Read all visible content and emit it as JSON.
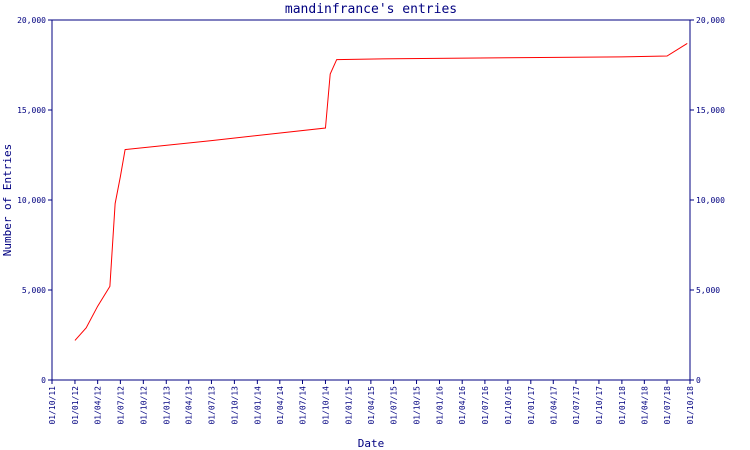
{
  "chart_data": {
    "type": "line",
    "title": "mandinfrance's entries",
    "x_label": "Date",
    "y_label": "Number of Entries",
    "series": [
      {
        "name": "entries",
        "color": "#ff0000",
        "x": [
          "2012-01-01",
          "2012-02-15",
          "2012-04-01",
          "2012-05-20",
          "2012-06-10",
          "2012-07-01",
          "2012-07-20",
          "2013-07-01",
          "2014-10-01",
          "2014-10-20",
          "2014-11-15",
          "2015-07-01",
          "2016-10-01",
          "2018-01-01",
          "2018-07-01",
          "2018-09-20"
        ],
        "values": [
          2200,
          2900,
          4100,
          5200,
          9800,
          11300,
          12800,
          13300,
          14000,
          17000,
          17800,
          17850,
          17900,
          17950,
          18000,
          18700
        ]
      }
    ],
    "xlim": [
      "2011-10-01",
      "2018-10-01"
    ],
    "xticks": [
      {
        "value": "2011-10-01",
        "label": "01/10/11"
      },
      {
        "value": "2012-01-01",
        "label": "01/01/12"
      },
      {
        "value": "2012-04-01",
        "label": "01/04/12"
      },
      {
        "value": "2012-07-01",
        "label": "01/07/12"
      },
      {
        "value": "2012-10-01",
        "label": "01/10/12"
      },
      {
        "value": "2013-01-01",
        "label": "01/01/13"
      },
      {
        "value": "2013-04-01",
        "label": "01/04/13"
      },
      {
        "value": "2013-07-01",
        "label": "01/07/13"
      },
      {
        "value": "2013-10-01",
        "label": "01/10/13"
      },
      {
        "value": "2014-01-01",
        "label": "01/01/14"
      },
      {
        "value": "2014-04-01",
        "label": "01/04/14"
      },
      {
        "value": "2014-07-01",
        "label": "01/07/14"
      },
      {
        "value": "2014-10-01",
        "label": "01/10/14"
      },
      {
        "value": "2015-01-01",
        "label": "01/01/15"
      },
      {
        "value": "2015-04-01",
        "label": "01/04/15"
      },
      {
        "value": "2015-07-01",
        "label": "01/07/15"
      },
      {
        "value": "2015-10-01",
        "label": "01/10/15"
      },
      {
        "value": "2016-01-01",
        "label": "01/01/16"
      },
      {
        "value": "2016-04-01",
        "label": "01/04/16"
      },
      {
        "value": "2016-07-01",
        "label": "01/07/16"
      },
      {
        "value": "2016-10-01",
        "label": "01/10/16"
      },
      {
        "value": "2017-01-01",
        "label": "01/01/17"
      },
      {
        "value": "2017-04-01",
        "label": "01/04/17"
      },
      {
        "value": "2017-07-01",
        "label": "01/07/17"
      },
      {
        "value": "2017-10-01",
        "label": "01/10/17"
      },
      {
        "value": "2018-01-01",
        "label": "01/01/18"
      },
      {
        "value": "2018-04-01",
        "label": "01/04/18"
      },
      {
        "value": "2018-07-01",
        "label": "01/07/18"
      },
      {
        "value": "2018-10-01",
        "label": "01/10/18"
      }
    ],
    "ylim": [
      0,
      20000
    ],
    "yticks": [
      0,
      {
        "value": 5000,
        "label": "5,000"
      },
      {
        "value": 10000,
        "label": "10,000"
      },
      {
        "value": 15000,
        "label": "15,000"
      },
      {
        "value": 20000,
        "label": "20,000"
      }
    ],
    "right_axis_labels": true
  }
}
